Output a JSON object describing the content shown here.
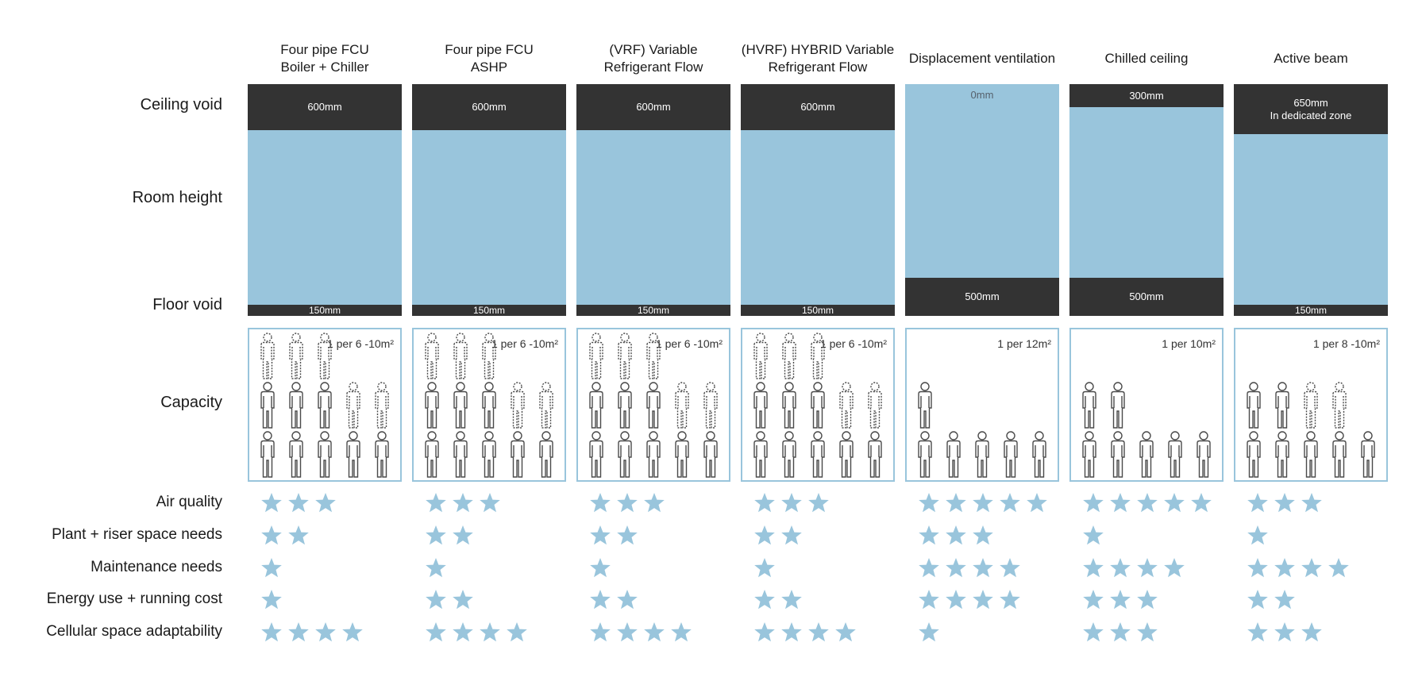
{
  "row_labels": {
    "ceiling_void": "Ceiling void",
    "room_height": "Room height",
    "floor_void": "Floor void",
    "capacity": "Capacity",
    "air_quality": "Air quality",
    "plant_riser": "Plant + riser space needs",
    "maintenance": "Maintenance needs",
    "energy": "Energy use + running cost",
    "cellular": "Cellular space adaptability"
  },
  "colors": {
    "room_blue": "#99c5dc",
    "void_dark": "#333333",
    "star_blue": "#99c5dc",
    "person_stroke": "#4a4a4a"
  },
  "systems": [
    {
      "header_line1": "Four pipe FCU",
      "header_line2": "Boiler + Chiller",
      "ceiling_label": "600mm",
      "ceiling_label_2": "",
      "ceiling_mm": 600,
      "floor_label": "150mm",
      "floor_mm": 150,
      "capacity_label": "1 per 6 -10m²",
      "capacity_solid": 8,
      "capacity_dashed": 5,
      "ratings": {
        "air_quality": 3,
        "plant_riser": 2,
        "maintenance": 1,
        "energy": 1,
        "cellular": 4
      }
    },
    {
      "header_line1": "Four pipe FCU",
      "header_line2": "ASHP",
      "ceiling_label": "600mm",
      "ceiling_label_2": "",
      "ceiling_mm": 600,
      "floor_label": "150mm",
      "floor_mm": 150,
      "capacity_label": "1 per 6 -10m²",
      "capacity_solid": 8,
      "capacity_dashed": 5,
      "ratings": {
        "air_quality": 3,
        "plant_riser": 2,
        "maintenance": 1,
        "energy": 2,
        "cellular": 4
      }
    },
    {
      "header_line1": "(VRF) Variable",
      "header_line2": "Refrigerant Flow",
      "ceiling_label": "600mm",
      "ceiling_label_2": "",
      "ceiling_mm": 600,
      "floor_label": "150mm",
      "floor_mm": 150,
      "capacity_label": "1 per 6 -10m²",
      "capacity_solid": 8,
      "capacity_dashed": 5,
      "ratings": {
        "air_quality": 3,
        "plant_riser": 2,
        "maintenance": 1,
        "energy": 2,
        "cellular": 4
      }
    },
    {
      "header_line1": "(HVRF) HYBRID Variable",
      "header_line2": "Refrigerant Flow",
      "ceiling_label": "600mm",
      "ceiling_label_2": "",
      "ceiling_mm": 600,
      "floor_label": "150mm",
      "floor_mm": 150,
      "capacity_label": "1 per 6 -10m²",
      "capacity_solid": 8,
      "capacity_dashed": 5,
      "ratings": {
        "air_quality": 3,
        "plant_riser": 2,
        "maintenance": 1,
        "energy": 2,
        "cellular": 4
      }
    },
    {
      "header_line1": "Displacement ventilation",
      "header_line2": "",
      "ceiling_label": "0mm",
      "ceiling_label_2": "",
      "ceiling_mm": 0,
      "floor_label": "500mm",
      "floor_mm": 500,
      "capacity_label": "1 per 12m²",
      "capacity_solid": 6,
      "capacity_dashed": 0,
      "ratings": {
        "air_quality": 5,
        "plant_riser": 3,
        "maintenance": 4,
        "energy": 4,
        "cellular": 1
      }
    },
    {
      "header_line1": "Chilled ceiling",
      "header_line2": "",
      "ceiling_label": "300mm",
      "ceiling_label_2": "",
      "ceiling_mm": 300,
      "floor_label": "500mm",
      "floor_mm": 500,
      "capacity_label": "1 per 10m²",
      "capacity_solid": 7,
      "capacity_dashed": 0,
      "ratings": {
        "air_quality": 5,
        "plant_riser": 1,
        "maintenance": 4,
        "energy": 3,
        "cellular": 3
      }
    },
    {
      "header_line1": "Active beam",
      "header_line2": "",
      "ceiling_label": "650mm",
      "ceiling_label_2": "In dedicated zone",
      "ceiling_mm": 650,
      "floor_label": "150mm",
      "floor_mm": 150,
      "capacity_label": "1 per 8 -10m²",
      "capacity_solid": 7,
      "capacity_dashed": 2,
      "ratings": {
        "air_quality": 3,
        "plant_riser": 1,
        "maintenance": 4,
        "energy": 2,
        "cellular": 3
      }
    }
  ]
}
